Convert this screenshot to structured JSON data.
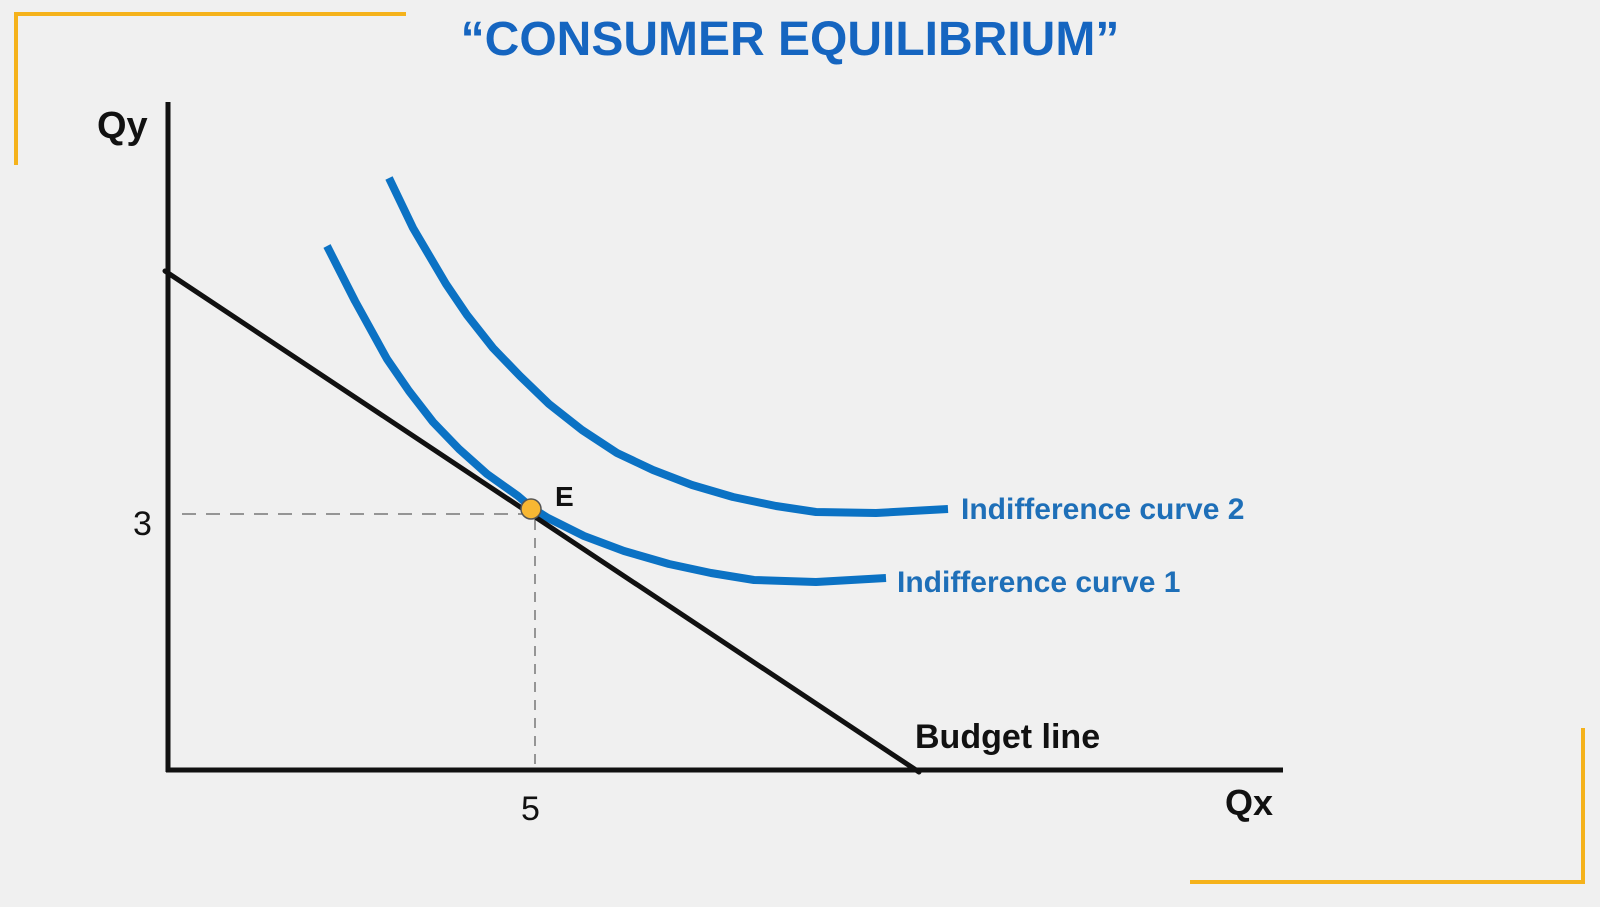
{
  "title": "“CONSUMER EQUILIBRIUM”",
  "colors": {
    "background": "#f0f0f0",
    "frame_accent": "#f5b21b",
    "title": "#1565c0",
    "curve": "#0b72c4",
    "curve_label": "#1e6fb8",
    "axis": "#111111",
    "guide": "#777777",
    "point_fill": "#f7b733"
  },
  "axes": {
    "y_label": "Qy",
    "x_label": "Qx"
  },
  "ticks": {
    "x_value": "5",
    "y_value": "3"
  },
  "equilibrium_point": {
    "label": "E",
    "qx": 5,
    "qy": 3
  },
  "lines": {
    "budget_line": "Budget line",
    "indifference_curve_1": "Indifference curve 1",
    "indifference_curve_2": "Indifference curve 2"
  }
}
